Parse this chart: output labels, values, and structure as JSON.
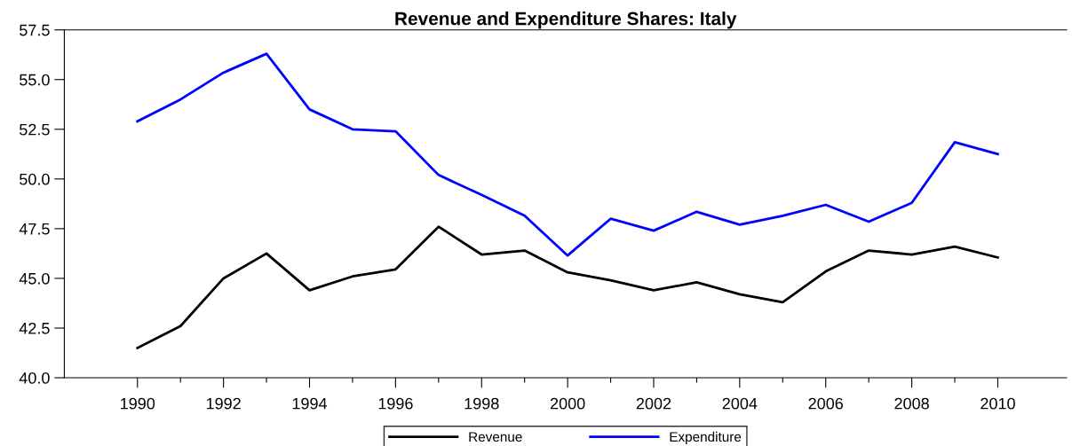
{
  "chart_data": {
    "type": "line",
    "title": "Revenue and Expenditure Shares: Italy",
    "x": [
      1990,
      1991,
      1992,
      1993,
      1994,
      1995,
      1996,
      1997,
      1998,
      1999,
      2000,
      2001,
      2002,
      2003,
      2004,
      2005,
      2006,
      2007,
      2008,
      2009,
      2010
    ],
    "series": [
      {
        "name": "Revenue",
        "color": "#000000",
        "values": [
          41.5,
          42.6,
          45.0,
          46.25,
          44.4,
          45.1,
          45.45,
          47.6,
          46.2,
          46.4,
          45.3,
          44.9,
          44.4,
          44.8,
          44.2,
          43.8,
          45.35,
          46.4,
          46.2,
          46.6,
          46.05
        ]
      },
      {
        "name": "Expenditure",
        "color": "#0000ff",
        "values": [
          52.9,
          54.0,
          55.35,
          56.3,
          53.5,
          52.5,
          52.4,
          50.2,
          49.2,
          48.15,
          46.15,
          48.0,
          47.4,
          48.35,
          47.7,
          48.15,
          48.7,
          47.85,
          48.8,
          51.85,
          51.25
        ]
      }
    ],
    "xlim": [
      1988.3,
      2011.6
    ],
    "xticks": [
      1990,
      {
        "value": 1991,
        "label": null
      },
      1992,
      {
        "value": 1993,
        "label": null
      },
      1994,
      {
        "value": 1995,
        "label": null
      },
      1996,
      {
        "value": 1997,
        "label": null
      },
      1998,
      {
        "value": 1999,
        "label": null
      },
      2000,
      {
        "value": 2001,
        "label": null
      },
      2002,
      {
        "value": 2003,
        "label": null
      },
      2004,
      {
        "value": 2005,
        "label": null
      },
      2006,
      {
        "value": 2007,
        "label": null
      },
      2008,
      {
        "value": 2009,
        "label": null
      },
      2010
    ],
    "ylim": [
      40.0,
      57.5
    ],
    "yticks": [
      {
        "value": 40,
        "label": "40.0"
      },
      42.5,
      {
        "value": 45,
        "label": "45.0"
      },
      47.5,
      {
        "value": 50,
        "label": "50.0"
      },
      52.5,
      {
        "value": 55,
        "label": "55.0"
      },
      57.5
    ],
    "grid": false,
    "legend": "bottom",
    "marker": "none",
    "line_style": "solid"
  }
}
